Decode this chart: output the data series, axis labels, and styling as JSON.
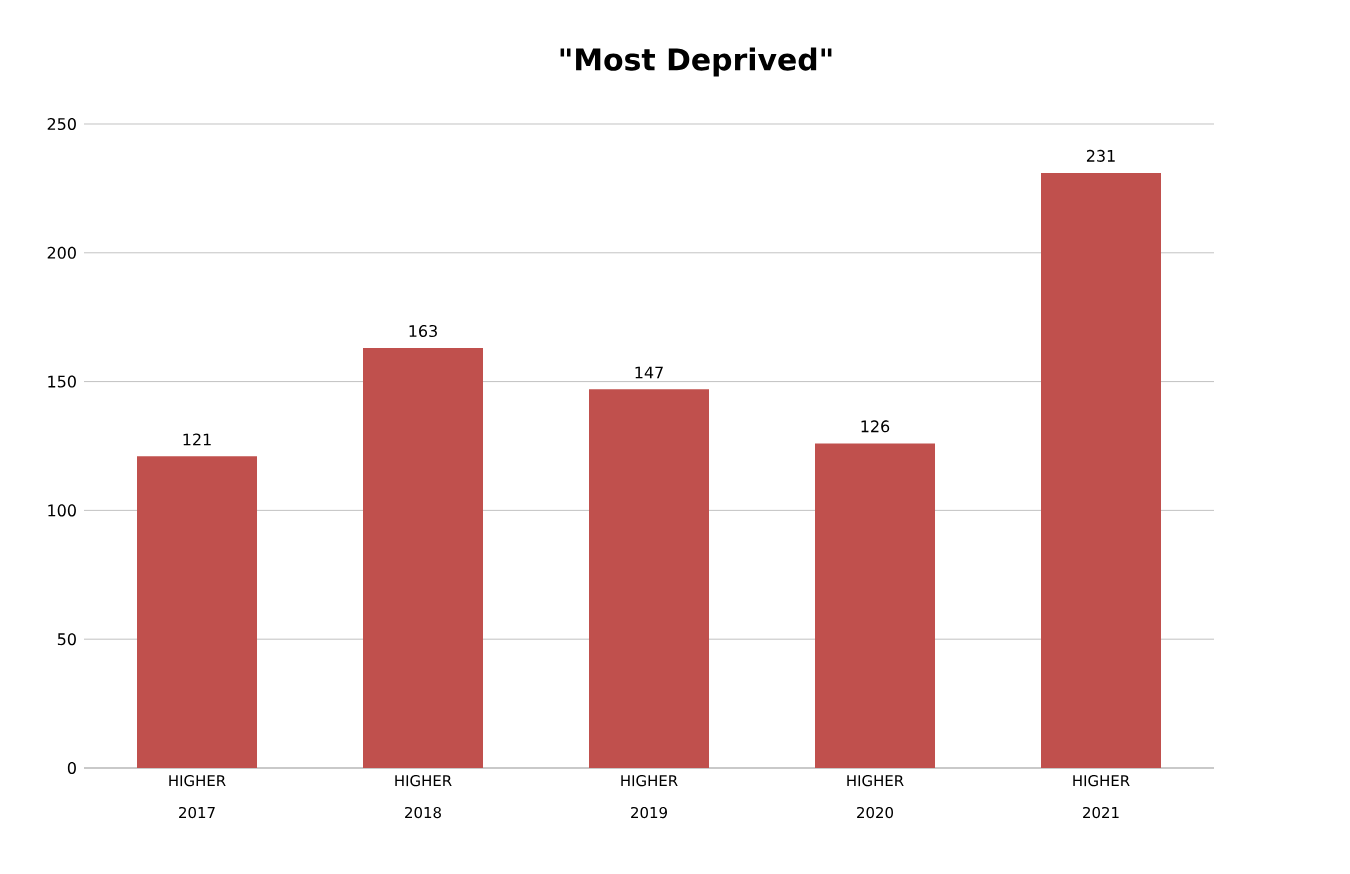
{
  "chart_data": {
    "type": "bar",
    "title": "\"Most Deprived\"",
    "categories": [
      "HIGHER 2017",
      "HIGHER 2018",
      "HIGHER 2019",
      "HIGHER 2020",
      "HIGHER 2021"
    ],
    "values": [
      121,
      163,
      147,
      126,
      231
    ],
    "color": "#c0504d",
    "ylim": [
      0,
      250
    ],
    "yticks": [
      0,
      50,
      100,
      150,
      200,
      250
    ],
    "grid": "y",
    "data_labels": true
  }
}
